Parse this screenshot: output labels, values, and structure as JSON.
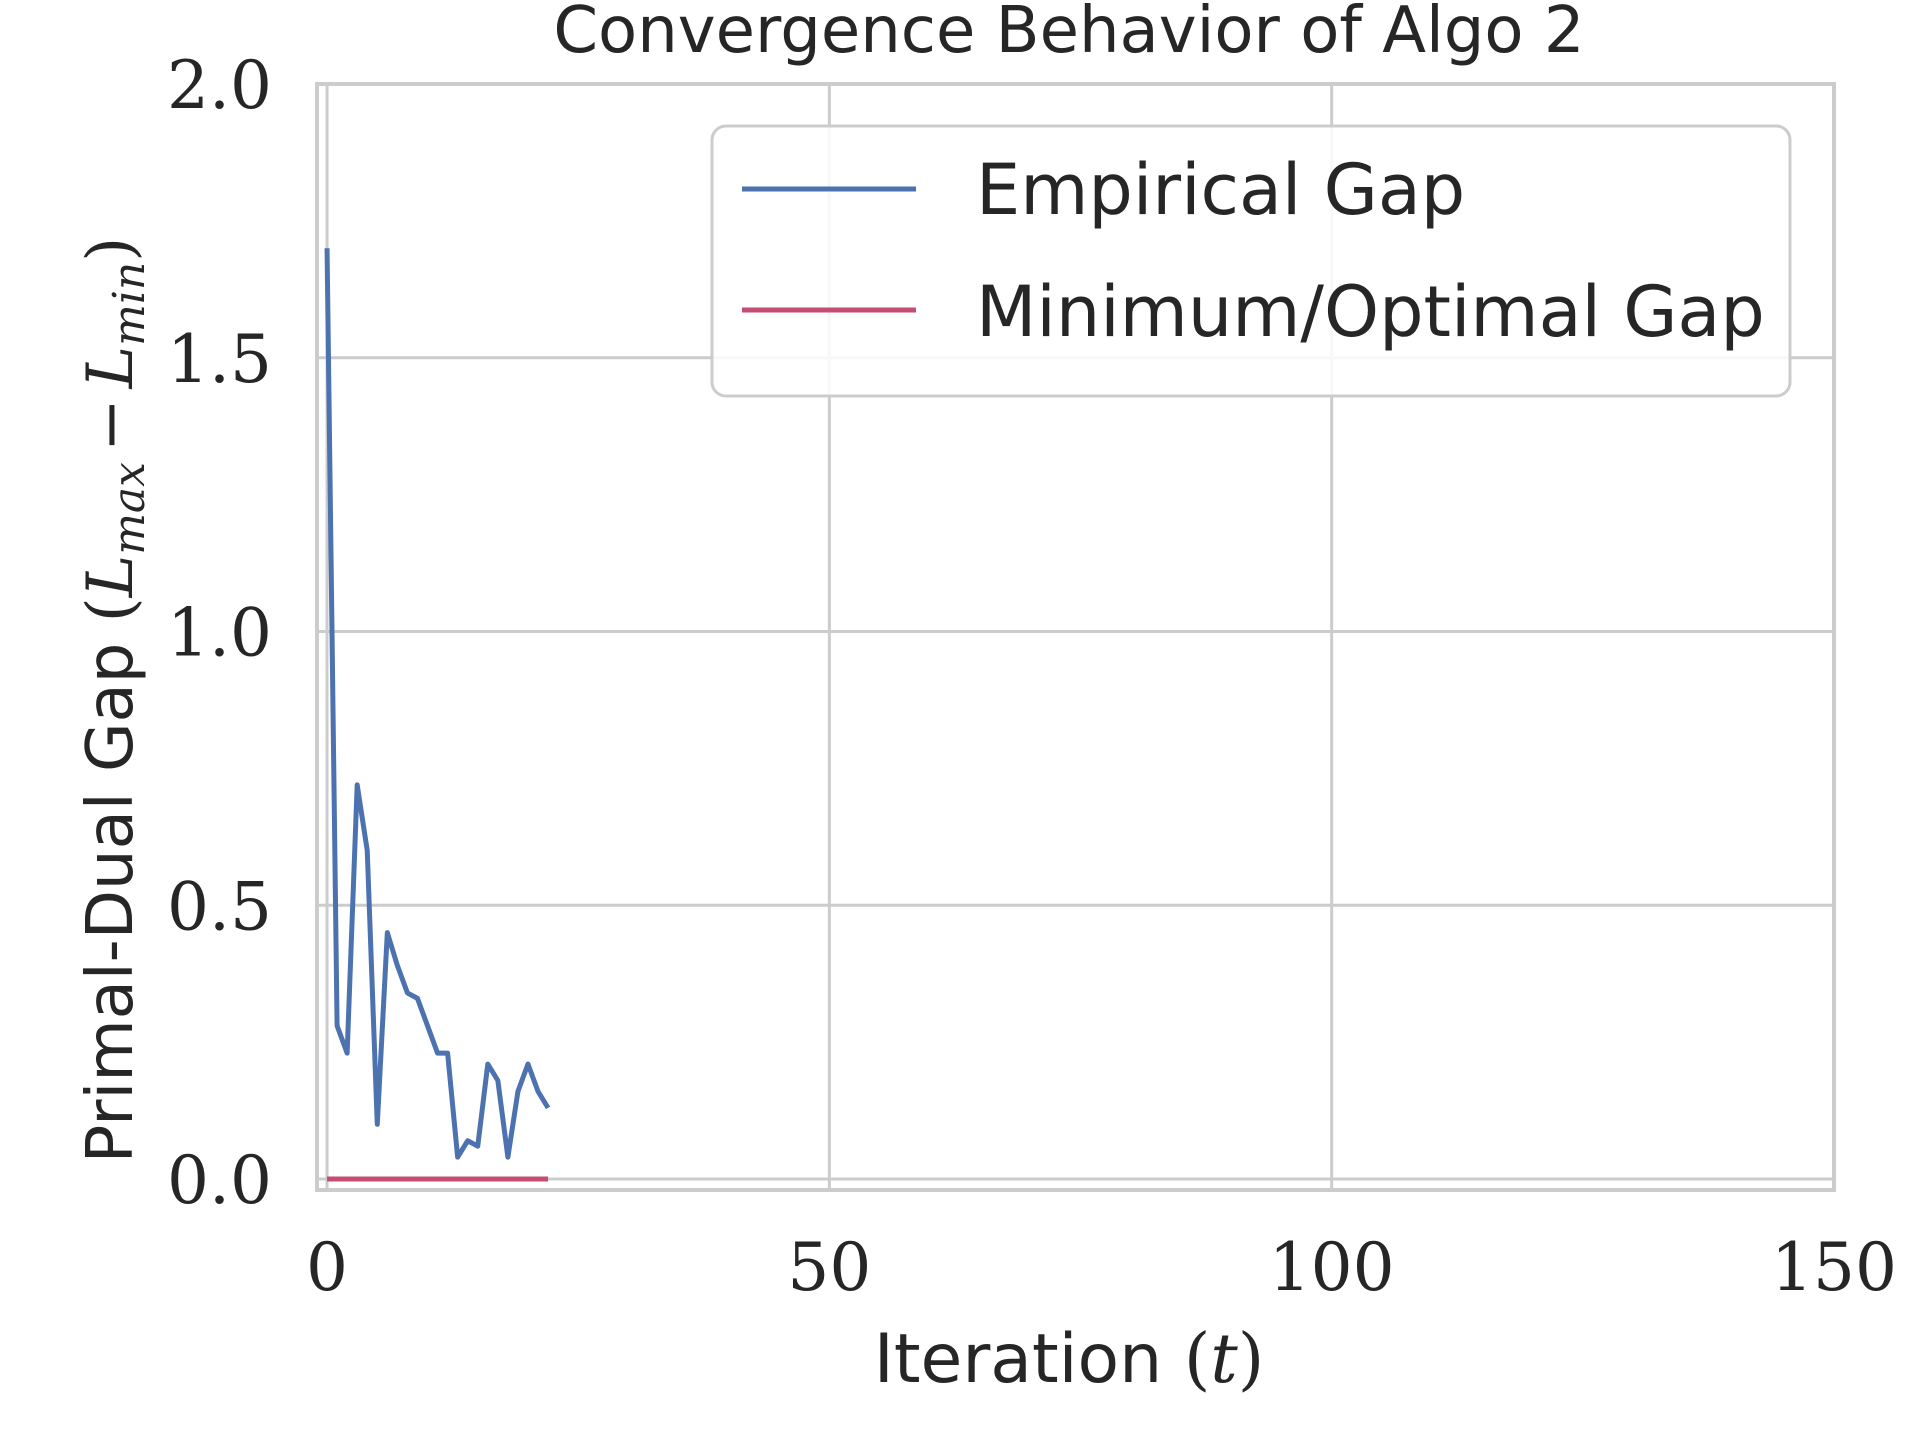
{
  "chart_data": {
    "type": "line",
    "title": "Convergence Behavior of Algo 2",
    "xlabel": {
      "text": "Iteration ",
      "math_open": "(",
      "math_var": "t",
      "math_close": ")"
    },
    "ylabel": {
      "text": "Primal-Dual Gap ",
      "math": "(Î̂max − Î̂min)",
      "math_open": "(",
      "L1": "L",
      "sub1": "max",
      "minus": "−",
      "L2": "L",
      "sub2": "min",
      "math_close": ")"
    },
    "xlim": [
      -1,
      150
    ],
    "ylim": [
      -0.02,
      2.0
    ],
    "xticks": [
      0,
      50,
      100,
      150
    ],
    "xtick_labels": [
      "0",
      "50",
      "100",
      "150"
    ],
    "yticks": [
      0.0,
      0.5,
      1.0,
      1.5,
      2.0
    ],
    "ytick_labels": [
      "0.0",
      "0.5",
      "1.0",
      "1.5",
      "2.0"
    ],
    "grid": true,
    "legend_position": "top-right",
    "series": [
      {
        "name": "Empirical Gap",
        "color": "#4c72b0",
        "x": [
          0,
          1,
          2,
          3,
          4,
          5,
          6,
          7,
          8,
          9,
          10,
          11,
          12,
          13,
          14,
          15,
          16,
          17,
          18,
          19,
          20,
          21,
          22
        ],
        "y": [
          1.7,
          0.28,
          0.23,
          0.72,
          0.6,
          0.1,
          0.45,
          0.39,
          0.34,
          0.33,
          0.28,
          0.23,
          0.23,
          0.04,
          0.07,
          0.06,
          0.21,
          0.18,
          0.04,
          0.16,
          0.21,
          0.16,
          0.13
        ]
      },
      {
        "name": "Minimum/Optimal Gap",
        "color": "#c44e72",
        "x": [
          0,
          22
        ],
        "y": [
          0.0,
          0.0
        ]
      }
    ]
  },
  "colors": {
    "grid": "#cccccc",
    "spine": "#cccccc",
    "text": "#262626",
    "legend_border": "#cccccc"
  }
}
